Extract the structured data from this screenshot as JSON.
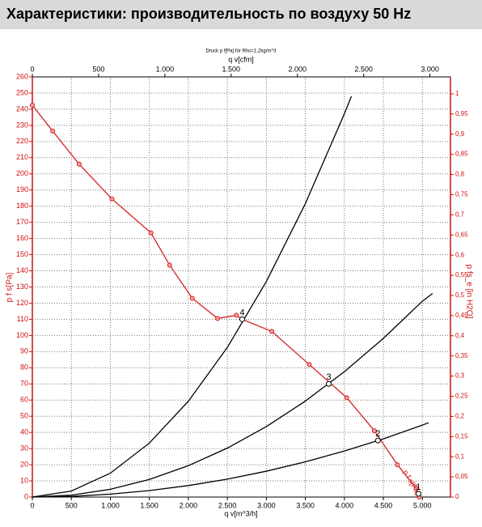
{
  "header": {
    "title": "Характеристики: производительность по воздуху 50 Hz"
  },
  "chart_data": {
    "type": "line",
    "subtitle": "Druck p f[Pa] für Rho=1,2kg/m^3",
    "x_label": "q v[m^3/h]",
    "x2_label": "q v[cfm]",
    "y_label": "p f s[Pa]",
    "y2_label": "p fs_e [in H2O]",
    "xlim": [
      0,
      5360
    ],
    "x2lim": [
      0,
      3155
    ],
    "ylim": [
      0,
      260
    ],
    "y2lim": [
      0,
      1.042
    ],
    "grid": true,
    "xticks": [
      0,
      500,
      {
        "value": 1000,
        "label": "1.000"
      },
      {
        "value": 1500,
        "label": "1.500"
      },
      {
        "value": 2000,
        "label": "2.000"
      },
      {
        "value": 2500,
        "label": "2.500"
      },
      {
        "value": 3000,
        "label": "3.000"
      },
      {
        "value": 3500,
        "label": "3.500"
      },
      {
        "value": 4000,
        "label": "4.000"
      },
      {
        "value": 4500,
        "label": "4.500"
      },
      {
        "value": 5000,
        "label": "5.000"
      }
    ],
    "x2ticks": [
      0,
      500,
      {
        "value": 1000,
        "label": "1.000"
      },
      {
        "value": 1500,
        "label": "1.500"
      },
      {
        "value": 2000,
        "label": "2.000"
      },
      {
        "value": 2500,
        "label": "2.500"
      },
      {
        "value": 3000,
        "label": "3.000"
      }
    ],
    "yticks": [
      0,
      10,
      20,
      30,
      40,
      50,
      60,
      70,
      80,
      90,
      100,
      110,
      120,
      130,
      140,
      150,
      160,
      170,
      180,
      190,
      200,
      210,
      220,
      230,
      240,
      250,
      260
    ],
    "y2ticks": [
      0,
      {
        "value": 0.05,
        "label": "0,05"
      },
      {
        "value": 0.1,
        "label": "0,1"
      },
      {
        "value": 0.15,
        "label": "0,15"
      },
      {
        "value": 0.2,
        "label": "0,2"
      },
      {
        "value": 0.25,
        "label": "0,25"
      },
      {
        "value": 0.3,
        "label": "0,3"
      },
      {
        "value": 0.35,
        "label": "0,35"
      },
      {
        "value": 0.4,
        "label": "0,4"
      },
      {
        "value": 0.45,
        "label": "0,45"
      },
      {
        "value": 0.5,
        "label": "0,5"
      },
      {
        "value": 0.55,
        "label": "0,55"
      },
      {
        "value": 0.6,
        "label": "0,6"
      },
      {
        "value": 0.65,
        "label": "0,65"
      },
      {
        "value": 0.7,
        "label": "0,7"
      },
      {
        "value": 0.75,
        "label": "0,75"
      },
      {
        "value": 0.8,
        "label": "0,8"
      },
      {
        "value": 0.85,
        "label": "0,85"
      },
      {
        "value": 0.9,
        "label": "0,9"
      },
      {
        "value": 0.95,
        "label": "0,95"
      },
      1
    ],
    "axis_color": "#d01010",
    "series": [
      {
        "color": "#d62020",
        "markers": true,
        "curve_label": "p f s[Pa]",
        "x": [
          0,
          260,
          600,
          1020,
          1520,
          1760,
          2050,
          2375,
          2615,
          2690,
          3070,
          3550,
          4030,
          4385,
          4680,
          4920,
          4960
        ],
        "values": [
          242.5,
          226.5,
          206,
          184.5,
          163.5,
          143.5,
          123,
          110.5,
          112.5,
          110,
          102.5,
          82,
          61.5,
          41,
          20,
          5.5,
          0
        ]
      },
      {
        "color": "#000000",
        "x": [
          0,
          500,
          1000,
          1500,
          2000,
          2500,
          3000,
          3500,
          4000,
          4090
        ],
        "values": [
          0,
          3.7,
          14.8,
          33.4,
          59.3,
          92.6,
          133.4,
          181.6,
          237.2,
          248
        ]
      },
      {
        "color": "#000000",
        "x": [
          0,
          500,
          1000,
          1500,
          2000,
          2500,
          3000,
          3500,
          4000,
          4500,
          5000,
          5130
        ],
        "values": [
          0,
          1.2,
          4.8,
          10.9,
          19.4,
          30.3,
          43.6,
          59.4,
          77.6,
          98.2,
          121.2,
          126
        ]
      },
      {
        "color": "#000000",
        "x": [
          0,
          500,
          1000,
          1500,
          2000,
          2500,
          3000,
          3500,
          4000,
          4500,
          5000,
          5080
        ],
        "values": [
          0,
          0.4,
          1.8,
          4,
          7.1,
          11.1,
          16,
          21.8,
          28.5,
          36,
          44.5,
          46
        ]
      }
    ],
    "operating_points": {
      "labels": [
        "4",
        "3",
        "2",
        "1"
      ],
      "x": [
        2690,
        3800,
        4430,
        4950
      ],
      "values": [
        110,
        70,
        35,
        2
      ]
    }
  }
}
